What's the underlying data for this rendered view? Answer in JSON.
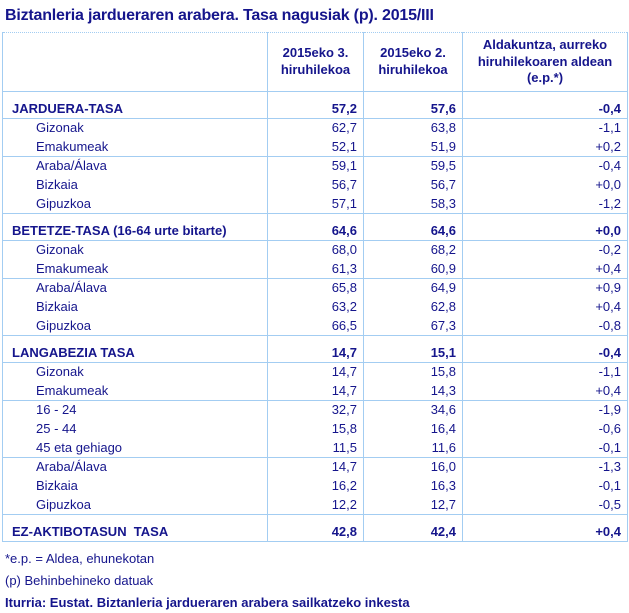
{
  "title": "Biztanleria jardueraren arabera. Tasa nagusiak (p). 2015/III",
  "colors": {
    "text_navy": "#15158c",
    "table_border_blue": "#a3cdf2",
    "background": "#ffffff"
  },
  "table": {
    "column_headers": [
      "2015eko 3. hiruhilekoa",
      "2015eko 2. hiruhilekoa",
      "Aldakuntza, aurreko hiruhilekoaren aldean (e.p.*)"
    ],
    "sections": [
      {
        "name": "jarduera-tasa",
        "rows": [
          {
            "label": "JARDUERA-TASA",
            "bold": true,
            "indent": false,
            "values": [
              "57,2",
              "57,6",
              "-0,4"
            ],
            "rule_below": true
          },
          {
            "label": "Gizonak",
            "bold": false,
            "indent": true,
            "values": [
              "62,7",
              "63,8",
              "-1,1"
            ],
            "rule_below": false
          },
          {
            "label": "Emakumeak",
            "bold": false,
            "indent": true,
            "values": [
              "52,1",
              "51,9",
              "+0,2"
            ],
            "rule_below": true
          },
          {
            "label": "Araba/Álava",
            "bold": false,
            "indent": true,
            "values": [
              "59,1",
              "59,5",
              "-0,4"
            ],
            "rule_below": false
          },
          {
            "label": "Bizkaia",
            "bold": false,
            "indent": true,
            "values": [
              "56,7",
              "56,7",
              "+0,0"
            ],
            "rule_below": false
          },
          {
            "label": "Gipuzkoa",
            "bold": false,
            "indent": true,
            "values": [
              "57,1",
              "58,3",
              "-1,2"
            ],
            "rule_below": true
          }
        ]
      },
      {
        "name": "betetze-tasa",
        "rows": [
          {
            "label": "BETETZE-TASA (16-64 urte bitarte)",
            "bold": true,
            "indent": false,
            "values": [
              "64,6",
              "64,6",
              "+0,0"
            ],
            "rule_below": true
          },
          {
            "label": "Gizonak",
            "bold": false,
            "indent": true,
            "values": [
              "68,0",
              "68,2",
              "-0,2"
            ],
            "rule_below": false
          },
          {
            "label": "Emakumeak",
            "bold": false,
            "indent": true,
            "values": [
              "61,3",
              "60,9",
              "+0,4"
            ],
            "rule_below": true
          },
          {
            "label": "Araba/Álava",
            "bold": false,
            "indent": true,
            "values": [
              "65,8",
              "64,9",
              "+0,9"
            ],
            "rule_below": false
          },
          {
            "label": "Bizkaia",
            "bold": false,
            "indent": true,
            "values": [
              "63,2",
              "62,8",
              "+0,4"
            ],
            "rule_below": false
          },
          {
            "label": "Gipuzkoa",
            "bold": false,
            "indent": true,
            "values": [
              "66,5",
              "67,3",
              "-0,8"
            ],
            "rule_below": true
          }
        ]
      },
      {
        "name": "langabezia-tasa",
        "rows": [
          {
            "label": "LANGABEZIA TASA",
            "bold": true,
            "indent": false,
            "values": [
              "14,7",
              "15,1",
              "-0,4"
            ],
            "rule_below": true
          },
          {
            "label": "Gizonak",
            "bold": false,
            "indent": true,
            "values": [
              "14,7",
              "15,8",
              "-1,1"
            ],
            "rule_below": false
          },
          {
            "label": "Emakumeak",
            "bold": false,
            "indent": true,
            "values": [
              "14,7",
              "14,3",
              "+0,4"
            ],
            "rule_below": true
          },
          {
            "label": "16 - 24",
            "bold": false,
            "indent": true,
            "values": [
              "32,7",
              "34,6",
              "-1,9"
            ],
            "rule_below": false
          },
          {
            "label": "25 - 44",
            "bold": false,
            "indent": true,
            "values": [
              "15,8",
              "16,4",
              "-0,6"
            ],
            "rule_below": false
          },
          {
            "label": "45 eta gehiago",
            "bold": false,
            "indent": true,
            "values": [
              "11,5",
              "11,6",
              "-0,1"
            ],
            "rule_below": true
          },
          {
            "label": "Araba/Álava",
            "bold": false,
            "indent": true,
            "values": [
              "14,7",
              "16,0",
              "-1,3"
            ],
            "rule_below": false
          },
          {
            "label": "Bizkaia",
            "bold": false,
            "indent": true,
            "values": [
              "16,2",
              "16,3",
              "-0,1"
            ],
            "rule_below": false
          },
          {
            "label": "Gipuzkoa",
            "bold": false,
            "indent": true,
            "values": [
              "12,2",
              "12,7",
              "-0,5"
            ],
            "rule_below": true
          }
        ]
      },
      {
        "name": "ez-aktibotasun-tasa",
        "rows": [
          {
            "label": "EZ-AKTIBOTASUN  TASA",
            "bold": true,
            "indent": false,
            "values": [
              "42,8",
              "42,4",
              "+0,4"
            ],
            "rule_below": true
          }
        ]
      }
    ]
  },
  "footnotes": [
    {
      "text": "*e.p. = Aldea, ehunekotan",
      "bold": false
    },
    {
      "text": "(p) Behinbehineko datuak",
      "bold": false
    },
    {
      "text": "Iturria: Eustat. Biztanleria jardueraren arabera sailkatzeko inkesta",
      "bold": true
    }
  ]
}
